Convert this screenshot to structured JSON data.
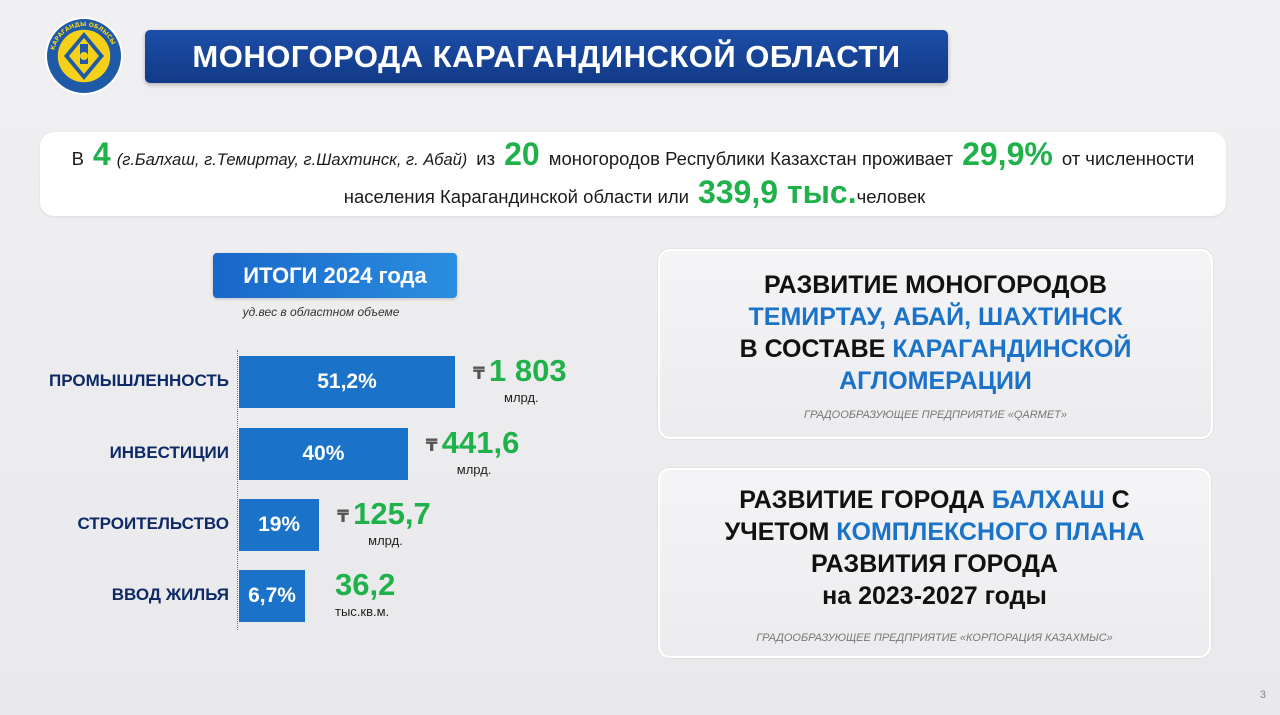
{
  "colors": {
    "title_bg": "#1a46a0",
    "bar": "#1a73c9",
    "accent_green": "#1fb24a",
    "accent_blue": "#1a73c9",
    "label_navy": "#0e2a66"
  },
  "emblem": {
    "icon": "regional-emblem-icon",
    "ring_text": "КАРАГАНДЫ ОБЛЫСЫ"
  },
  "title": "МОНОГОРОДА КАРАГАНДИНСКОЙ ОБЛАСТИ",
  "intro": {
    "p1": "В",
    "num_cities": "4",
    "cities_note": "(г.Балхаш, г.Темиртау, г.Шахтинск, г. Абай)",
    "p2": "из",
    "num_total": "20",
    "p3": "моногородов Республики Казахстан проживает",
    "share": "29,9%",
    "p4": "от численности",
    "p5": "населения Карагандинской области или",
    "population": "339,9 тыс.",
    "p6": "человек"
  },
  "totals": {
    "badge": "ИТОГИ 2024 года",
    "subtitle": "уд.вес в областном объеме"
  },
  "chart_data": {
    "type": "bar",
    "categories": [
      "ПРОМЫШЛЕННОСТЬ",
      "ИНВЕСТИЦИИ",
      "СТРОИТЕЛЬСТВО",
      "ВВОД ЖИЛЬЯ"
    ],
    "values": [
      51.2,
      40,
      19,
      6.7
    ],
    "value_labels": [
      "51,2%",
      "40%",
      "19%",
      "6,7%"
    ],
    "amounts": [
      "1 803",
      "441,6",
      "125,7",
      "36,2"
    ],
    "currency": [
      "₸",
      "₸",
      "₸",
      ""
    ],
    "units": [
      "млрд.",
      "млрд.",
      "млрд.",
      "тыс.кв.м."
    ]
  },
  "card1": {
    "l1": "РАЗВИТИЕ МОНОГОРОДОВ",
    "l2": "ТЕМИРТАУ, АБАЙ, ШАХТИНСК",
    "l3a": "В СОСТАВЕ",
    "l3b": "КАРАГАНДИНСКОЙ",
    "l4": "АГЛОМЕРАЦИИ",
    "foot": "ГРАДООБРАЗУЮЩЕЕ ПРЕДПРИЯТИЕ «QARMET»"
  },
  "card2": {
    "l1a": "РАЗВИТИЕ ГОРОДА",
    "l1b": "БАЛХАШ",
    "l1c": "С",
    "l2a": "УЧЕТОМ",
    "l2b": "КОМПЛЕКСНОГО ПЛАНА",
    "l3": "РАЗВИТИЯ ГОРОДА",
    "l4": "на 2023-2027 годы",
    "foot": "ГРАДООБРАЗУЮЩЕЕ ПРЕДПРИЯТИЕ  «КОРПОРАЦИЯ КАЗАХМЫС»"
  },
  "page_number": "3"
}
